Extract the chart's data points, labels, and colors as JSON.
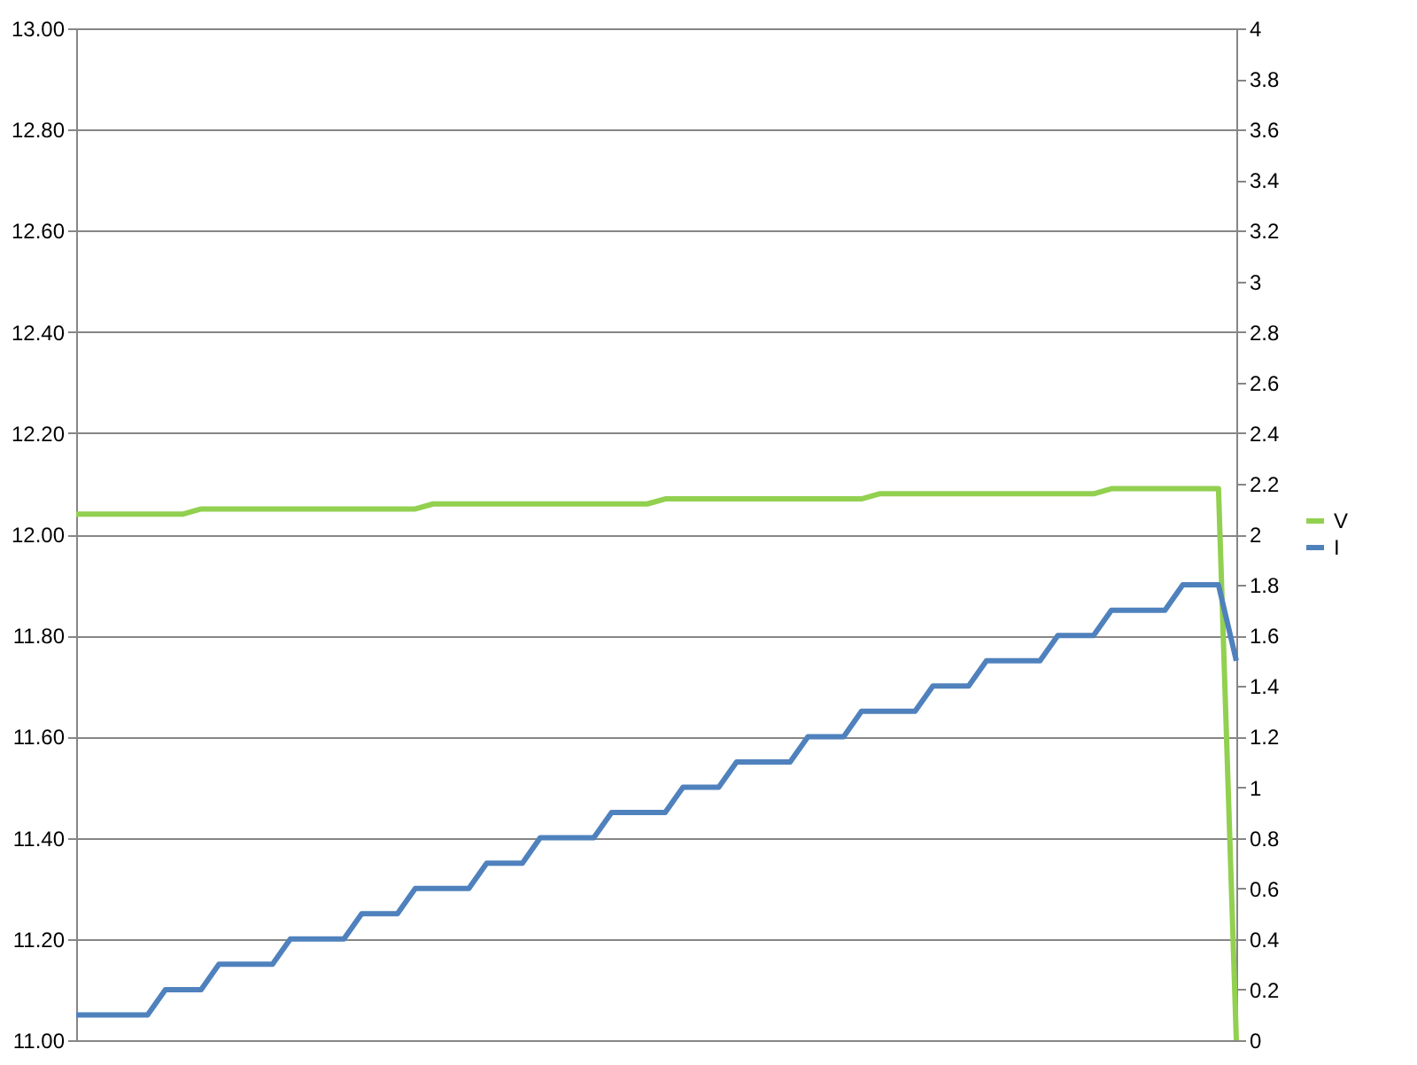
{
  "chart_data": {
    "type": "line",
    "categories": [
      null,
      null,
      null,
      null,
      null,
      null,
      null,
      null,
      null,
      null,
      null,
      null,
      null,
      null,
      null,
      null,
      null,
      null,
      null,
      null,
      null,
      null,
      null,
      null,
      null,
      null,
      null,
      null,
      null,
      null,
      null,
      null,
      null,
      null,
      null,
      null,
      null,
      null,
      null,
      null,
      null,
      null,
      null,
      null,
      null,
      null,
      null,
      null,
      null,
      null,
      null,
      null,
      null,
      null,
      null,
      null,
      null,
      null,
      null,
      null,
      null,
      null,
      null,
      null,
      null,
      null
    ],
    "series": [
      {
        "name": "V",
        "color": "#92d050",
        "values": [
          12.04,
          12.04,
          12.04,
          12.04,
          12.04,
          12.04,
          12.04,
          12.05,
          12.05,
          12.05,
          12.05,
          12.05,
          12.05,
          12.05,
          12.05,
          12.05,
          12.05,
          12.05,
          12.05,
          12.05,
          12.06,
          12.06,
          12.06,
          12.06,
          12.06,
          12.06,
          12.06,
          12.06,
          12.06,
          12.06,
          12.06,
          12.06,
          12.06,
          12.07,
          12.07,
          12.07,
          12.07,
          12.07,
          12.07,
          12.07,
          12.07,
          12.07,
          12.07,
          12.07,
          12.07,
          12.08,
          12.08,
          12.08,
          12.08,
          12.08,
          12.08,
          12.08,
          12.08,
          12.08,
          12.08,
          12.08,
          12.08,
          12.08,
          12.09,
          12.09,
          12.09,
          12.09,
          12.09,
          12.09,
          12.09,
          11.0
        ]
      },
      {
        "name": "I",
        "color": "#4f81bd",
        "axis": "y2",
        "values": [
          0.1,
          0.1,
          0.1,
          0.1,
          0.1,
          0.2,
          0.2,
          0.2,
          0.3,
          0.3,
          0.3,
          0.3,
          0.4,
          0.4,
          0.4,
          0.4,
          0.5,
          0.5,
          0.5,
          0.6,
          0.6,
          0.6,
          0.6,
          0.7,
          0.7,
          0.7,
          0.8,
          0.8,
          0.8,
          0.8,
          0.9,
          0.9,
          0.9,
          0.9,
          1.0,
          1.0,
          1.0,
          1.1,
          1.1,
          1.1,
          1.1,
          1.2,
          1.2,
          1.2,
          1.3,
          1.3,
          1.3,
          1.3,
          1.4,
          1.4,
          1.4,
          1.5,
          1.5,
          1.5,
          1.5,
          1.6,
          1.6,
          1.6,
          1.7,
          1.7,
          1.7,
          1.7,
          1.8,
          1.8,
          1.8,
          1.5
        ]
      }
    ],
    "ylim": [
      11,
      13
    ],
    "yticks": [
      {
        "value": 11,
        "label": "11.00"
      },
      {
        "value": 11.2,
        "label": "11.20"
      },
      {
        "value": 11.4,
        "label": "11.40"
      },
      {
        "value": 11.6,
        "label": "11.60"
      },
      {
        "value": 11.8,
        "label": "11.80"
      },
      {
        "value": 12,
        "label": "12.00"
      },
      {
        "value": 12.2,
        "label": "12.20"
      },
      {
        "value": 12.4,
        "label": "12.40"
      },
      {
        "value": 12.6,
        "label": "12.60"
      },
      {
        "value": 12.8,
        "label": "12.80"
      },
      {
        "value": 13,
        "label": "13.00"
      }
    ],
    "y2lim": [
      0,
      4
    ],
    "y2ticks": [
      0,
      0.2,
      0.4,
      0.6,
      0.8,
      1,
      1.2,
      1.4,
      1.6,
      1.8,
      2,
      2.2,
      2.4,
      2.6,
      2.8,
      3,
      3.2,
      3.4,
      3.6,
      3.8,
      4
    ],
    "grid": "y",
    "legend": "right",
    "line_style": "solid",
    "marker": "none"
  }
}
